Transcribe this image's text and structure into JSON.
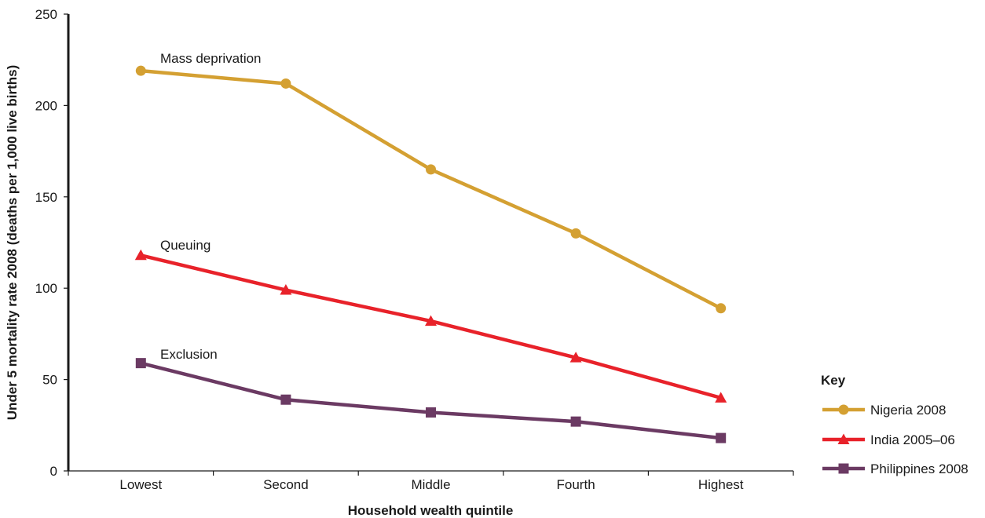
{
  "chart_data": {
    "type": "line",
    "title": "",
    "xlabel": "Household wealth quintile",
    "ylabel": "Under 5 mortality rate 2008 (deaths per 1,000 live births)",
    "categories": [
      "Lowest",
      "Second",
      "Middle",
      "Fourth",
      "Highest"
    ],
    "ylim": [
      0,
      250
    ],
    "yticks": [
      "0",
      "50",
      "100",
      "150",
      "200",
      "250"
    ],
    "grid": false,
    "legend": {
      "title": "Key",
      "placement": "bottom-right"
    },
    "series": [
      {
        "name": "Nigeria 2008",
        "color": "#D4A032",
        "marker": "circle",
        "values": [
          219,
          212,
          165,
          130,
          89
        ]
      },
      {
        "name": "India 2005–06",
        "color": "#E8222A",
        "marker": "triangle",
        "values": [
          118,
          99,
          82,
          62,
          40
        ]
      },
      {
        "name": "Philippines 2008",
        "color": "#6B3A63",
        "marker": "square",
        "values": [
          59,
          39,
          32,
          27,
          18
        ]
      }
    ],
    "annotations": [
      {
        "text": "Mass deprivation",
        "series": 0
      },
      {
        "text": "Queuing",
        "series": 1
      },
      {
        "text": "Exclusion",
        "series": 2
      }
    ]
  }
}
